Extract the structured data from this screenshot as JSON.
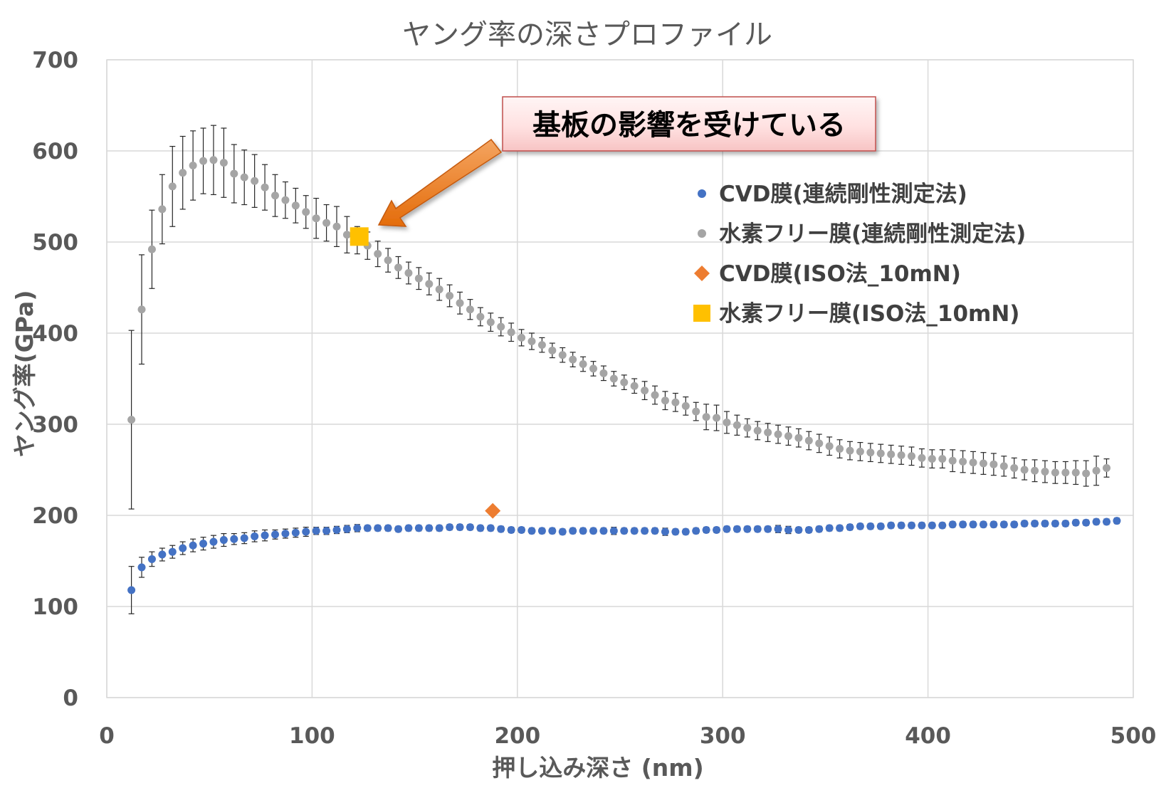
{
  "chart_data": {
    "type": "scatter",
    "title": "ヤング率の深さプロファイル",
    "xlabel": "押し込み深さ (nm)",
    "ylabel": "ヤング率(GPa)",
    "xlim": [
      0,
      500
    ],
    "ylim": [
      0,
      700
    ],
    "x_ticks": [
      "0",
      "100",
      "200",
      "300",
      "400",
      "500"
    ],
    "y_ticks": [
      "0",
      "100",
      "200",
      "300",
      "400",
      "500",
      "600",
      "700"
    ],
    "grid": true,
    "legend_position": "right",
    "annotation": "基板の影響を受けている",
    "series": [
      {
        "name": "CVD膜(連続剛性測定法)",
        "marker": "circle",
        "color": "#4472C4",
        "x": [
          12,
          17,
          22,
          27,
          32,
          37,
          42,
          47,
          52,
          57,
          62,
          67,
          72,
          77,
          82,
          87,
          92,
          97,
          102,
          107,
          112,
          117,
          122,
          127,
          132,
          137,
          142,
          147,
          152,
          157,
          162,
          167,
          172,
          177,
          182,
          187,
          192,
          197,
          202,
          207,
          212,
          217,
          222,
          227,
          232,
          237,
          242,
          247,
          252,
          257,
          262,
          267,
          272,
          277,
          282,
          287,
          292,
          297,
          302,
          307,
          312,
          317,
          322,
          327,
          332,
          337,
          342,
          347,
          352,
          357,
          362,
          367,
          372,
          377,
          382,
          387,
          392,
          397,
          402,
          407,
          412,
          417,
          422,
          427,
          432,
          437,
          442,
          447,
          452,
          457,
          462,
          467,
          472,
          477,
          482,
          487,
          492
        ],
        "y": [
          118,
          143,
          152,
          157,
          160,
          164,
          167,
          169,
          171,
          173,
          174,
          175,
          177,
          178,
          179,
          180,
          181,
          182,
          183,
          183,
          184,
          185,
          186,
          186,
          186,
          186,
          185,
          186,
          186,
          186,
          186,
          187,
          187,
          187,
          186,
          186,
          185,
          184,
          184,
          183,
          183,
          183,
          182,
          183,
          183,
          183,
          183,
          183,
          183,
          183,
          183,
          183,
          182,
          182,
          182,
          183,
          184,
          184,
          185,
          185,
          185,
          185,
          185,
          185,
          184,
          184,
          184,
          185,
          186,
          186,
          187,
          188,
          188,
          188,
          189,
          189,
          189,
          189,
          189,
          189,
          190,
          190,
          190,
          190,
          190,
          190,
          190,
          191,
          191,
          191,
          191,
          191,
          192,
          192,
          193,
          193,
          194
        ],
        "error": [
          26,
          11,
          8,
          7,
          7,
          7,
          7,
          7,
          7,
          7,
          6,
          6,
          6,
          6,
          5,
          5,
          5,
          5,
          4,
          4,
          4,
          4,
          4,
          3,
          3,
          3,
          3,
          3,
          3,
          3,
          3,
          3,
          3,
          3,
          3,
          3,
          3,
          3,
          3,
          3,
          3,
          3,
          3,
          3,
          3,
          3,
          3,
          4,
          3,
          3,
          3,
          3,
          4,
          3,
          3,
          3,
          3,
          3,
          3,
          3,
          3,
          3,
          3,
          4,
          4,
          3,
          3,
          3,
          3,
          3,
          3,
          3,
          3,
          3,
          3,
          3,
          3,
          3,
          3,
          3,
          3,
          3,
          3,
          3,
          3,
          3,
          3,
          3,
          3,
          3,
          3,
          3,
          3,
          3,
          3,
          3,
          3
        ]
      },
      {
        "name": "水素フリー膜(連続剛性測定法)",
        "marker": "circle",
        "color": "#A5A5A5",
        "x": [
          12,
          17,
          22,
          27,
          32,
          37,
          42,
          47,
          52,
          57,
          62,
          67,
          72,
          77,
          82,
          87,
          92,
          97,
          102,
          107,
          112,
          117,
          122,
          127,
          132,
          137,
          142,
          147,
          152,
          157,
          162,
          167,
          172,
          177,
          182,
          187,
          192,
          197,
          202,
          207,
          212,
          217,
          222,
          227,
          232,
          237,
          242,
          247,
          252,
          257,
          262,
          267,
          272,
          277,
          282,
          287,
          292,
          297,
          302,
          307,
          312,
          317,
          322,
          327,
          332,
          337,
          342,
          347,
          352,
          357,
          362,
          367,
          372,
          377,
          382,
          387,
          392,
          397,
          402,
          407,
          412,
          417,
          422,
          427,
          432,
          437,
          442,
          447,
          452,
          457,
          462,
          467,
          472,
          477,
          482,
          487
        ],
        "y": [
          305,
          426,
          492,
          536,
          561,
          576,
          584,
          589,
          590,
          587,
          575,
          571,
          567,
          560,
          551,
          546,
          540,
          533,
          526,
          521,
          517,
          508,
          502,
          496,
          487,
          480,
          472,
          466,
          460,
          454,
          448,
          441,
          433,
          426,
          418,
          412,
          407,
          401,
          395,
          391,
          387,
          381,
          376,
          371,
          366,
          361,
          356,
          350,
          346,
          342,
          337,
          332,
          326,
          324,
          320,
          314,
          308,
          307,
          302,
          299,
          296,
          293,
          291,
          289,
          287,
          285,
          282,
          279,
          276,
          273,
          271,
          270,
          269,
          268,
          267,
          266,
          265,
          263,
          262,
          262,
          260,
          259,
          258,
          257,
          256,
          254,
          252,
          250,
          249,
          248,
          247,
          247,
          247,
          246,
          249,
          252
        ],
        "error": [
          98,
          60,
          43,
          38,
          44,
          40,
          38,
          36,
          38,
          38,
          32,
          30,
          29,
          25,
          23,
          20,
          19,
          18,
          22,
          20,
          22,
          20,
          15,
          15,
          14,
          13,
          12,
          12,
          12,
          12,
          12,
          12,
          12,
          11,
          10,
          10,
          10,
          10,
          9,
          9,
          8,
          8,
          8,
          8,
          8,
          8,
          8,
          8,
          8,
          8,
          10,
          10,
          10,
          10,
          10,
          10,
          14,
          14,
          12,
          11,
          10,
          10,
          10,
          10,
          10,
          10,
          10,
          10,
          10,
          10,
          10,
          10,
          10,
          10,
          10,
          10,
          10,
          10,
          10,
          10,
          12,
          12,
          12,
          12,
          12,
          11,
          11,
          11,
          12,
          12,
          12,
          12,
          13,
          14,
          16,
          10
        ]
      },
      {
        "name": "CVD膜(ISO法_10mN)",
        "marker": "diamond",
        "color": "#ED7D31",
        "x": [
          188
        ],
        "y": [
          205
        ]
      },
      {
        "name": "水素フリー膜(ISO法_10mN)",
        "marker": "square",
        "color": "#FFC000",
        "x": [
          123
        ],
        "y": [
          506
        ]
      }
    ]
  }
}
